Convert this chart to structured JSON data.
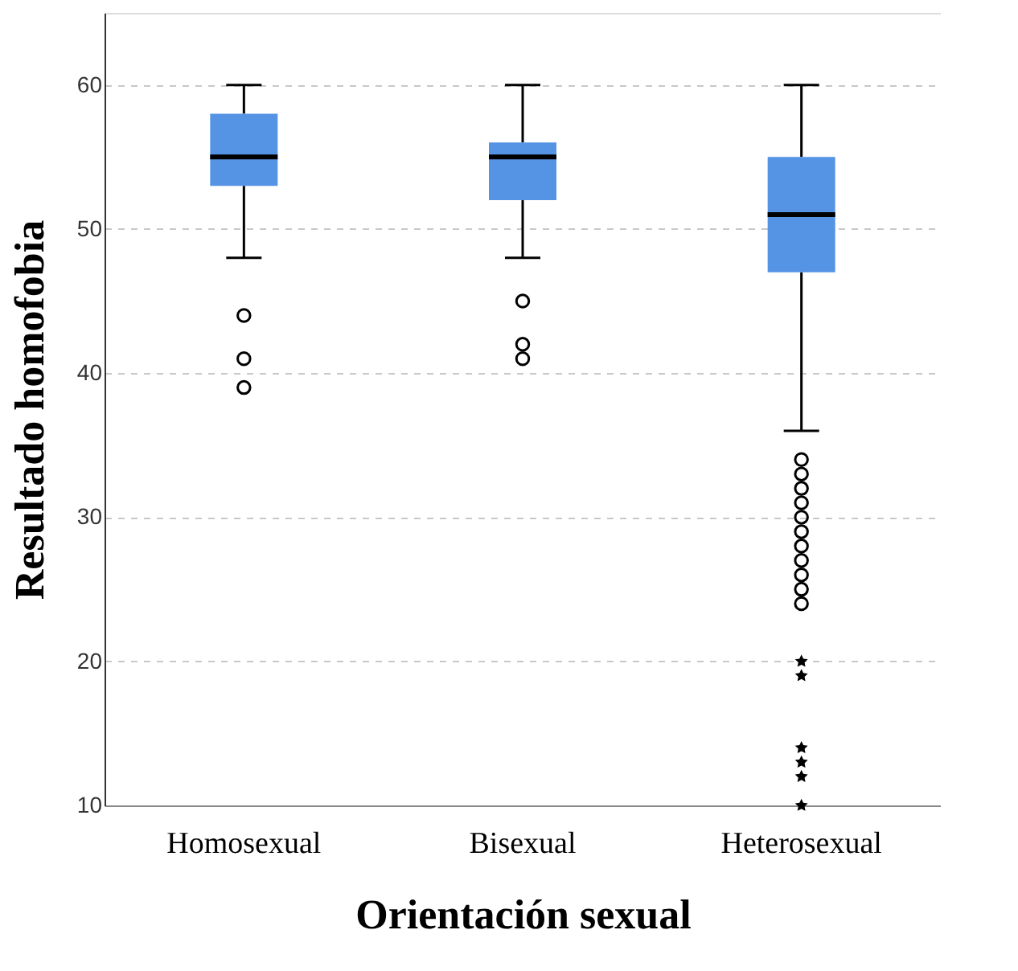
{
  "chart_data": {
    "type": "box",
    "xlabel": "Orientación sexual",
    "ylabel": "Resultado homofobia",
    "categories": [
      "Homosexual",
      "Bisexual",
      "Heterosexual"
    ],
    "ylim": [
      10,
      65
    ],
    "yticks": [
      10,
      20,
      30,
      40,
      50,
      60
    ],
    "grid": "y",
    "legend": false,
    "series": [
      {
        "color": "#5593e4",
        "boxes": [
          {
            "low": 48,
            "q1": 53,
            "median": 55,
            "q3": 58,
            "high": 60,
            "outliers": [
              44,
              41,
              39
            ]
          },
          {
            "low": 48,
            "q1": 52,
            "median": 55,
            "q3": 56,
            "high": 60,
            "outliers": [
              45,
              42,
              41
            ]
          },
          {
            "low": 36,
            "q1": 47,
            "median": 51,
            "q3": 55,
            "high": 60,
            "outliers": [
              34,
              33,
              32,
              31,
              30,
              29,
              28,
              27,
              26,
              25,
              24
            ]
          }
        ]
      },
      {
        "type": "scatter",
        "marker": "star",
        "color": "#000000",
        "x": [
          "Heterosexual",
          "Heterosexual",
          "Heterosexual",
          "Heterosexual",
          "Heterosexual",
          "Heterosexual"
        ],
        "values": [
          20,
          19,
          14,
          13,
          12,
          10
        ]
      }
    ]
  }
}
